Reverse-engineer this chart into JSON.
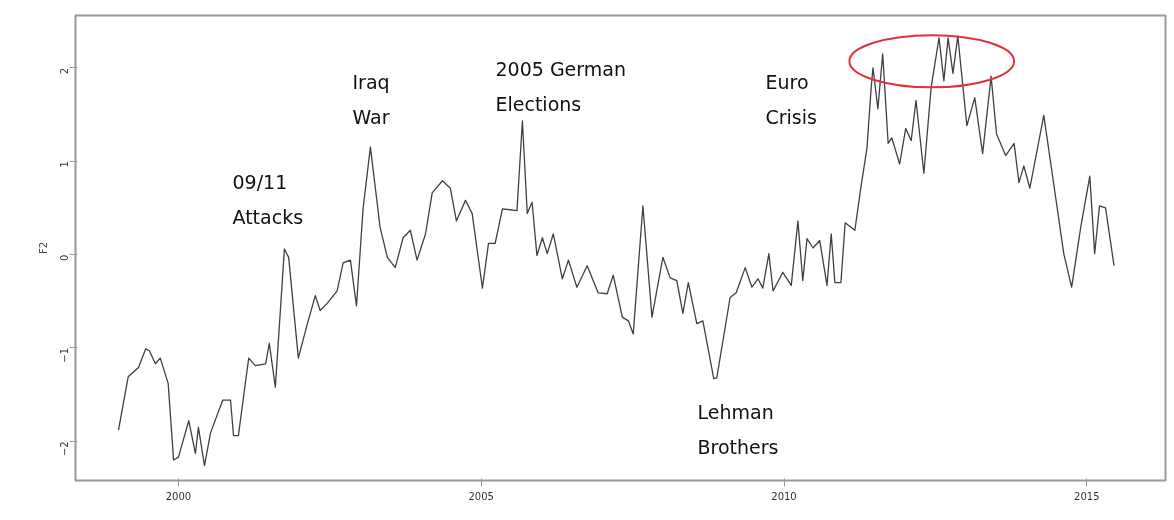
{
  "chart_data": {
    "type": "line",
    "ylabel": "F2",
    "x": [
      1999.01,
      1999.17,
      1999.34,
      1999.46,
      1999.52,
      1999.62,
      1999.7,
      1999.83,
      1999.92,
      2000.0,
      2000.17,
      2000.28,
      2000.33,
      2000.43,
      2000.53,
      2000.73,
      2000.86,
      2000.91,
      2000.99,
      2001.16,
      2001.27,
      2001.44,
      2001.5,
      2001.6,
      2001.75,
      2001.82,
      2001.98,
      2002.13,
      2002.26,
      2002.34,
      2002.46,
      2002.62,
      2002.72,
      2002.84,
      2002.94,
      2003.05,
      2003.17,
      2003.33,
      2003.45,
      2003.58,
      2003.71,
      2003.83,
      2003.94,
      2004.08,
      2004.19,
      2004.36,
      2004.49,
      2004.59,
      2004.74,
      2004.85,
      2005.02,
      2005.12,
      2005.23,
      2005.35,
      2005.59,
      2005.68,
      2005.76,
      2005.84,
      2005.92,
      2006.01,
      2006.09,
      2006.19,
      2006.34,
      2006.44,
      2006.58,
      2006.75,
      2006.93,
      2007.08,
      2007.18,
      2007.33,
      2007.43,
      2007.51,
      2007.67,
      2007.82,
      2008.0,
      2008.12,
      2008.23,
      2008.33,
      2008.42,
      2008.56,
      2008.66,
      2008.84,
      2008.89,
      2009.11,
      2009.21,
      2009.36,
      2009.47,
      2009.57,
      2009.65,
      2009.75,
      2009.82,
      2009.98,
      2010.12,
      2010.23,
      2010.31,
      2010.38,
      2010.48,
      2010.59,
      2010.71,
      2010.78,
      2010.84,
      2010.94,
      2011.01,
      2011.17,
      2011.27,
      2011.37,
      2011.44,
      2011.47,
      2011.55,
      2011.63,
      2011.72,
      2011.78,
      2011.91,
      2012.01,
      2012.1,
      2012.18,
      2012.31,
      2012.43,
      2012.56,
      2012.64,
      2012.71,
      2012.79,
      2012.87,
      2013.02,
      2013.15,
      2013.28,
      2013.42,
      2013.51,
      2013.66,
      2013.8,
      2013.88,
      2013.96,
      2014.06,
      2014.29,
      2014.44,
      2014.62,
      2014.75,
      2014.9,
      2015.05,
      2015.13,
      2015.21,
      2015.31,
      2015.45
    ],
    "series": [
      {
        "color": "#404040",
        "values": [
          -1.88,
          -1.31,
          -1.21,
          -1.01,
          -1.03,
          -1.17,
          -1.11,
          -1.38,
          -2.2,
          -2.17,
          -1.78,
          -2.13,
          -1.85,
          -2.26,
          -1.91,
          -1.56,
          -1.56,
          -1.94,
          -1.94,
          -1.11,
          -1.19,
          -1.17,
          -0.95,
          -1.42,
          0.06,
          -0.03,
          -1.11,
          -0.74,
          -0.44,
          -0.6,
          -0.52,
          -0.39,
          -0.09,
          -0.06,
          -0.55,
          0.5,
          1.15,
          0.29,
          -0.03,
          -0.14,
          0.18,
          0.26,
          -0.06,
          0.22,
          0.66,
          0.79,
          0.71,
          0.36,
          0.58,
          0.44,
          -0.36,
          0.12,
          0.12,
          0.49,
          0.47,
          1.43,
          0.44,
          0.56,
          -0.01,
          0.18,
          0.01,
          0.22,
          -0.26,
          -0.06,
          -0.35,
          -0.12,
          -0.41,
          -0.42,
          -0.22,
          -0.67,
          -0.71,
          -0.85,
          0.52,
          -0.67,
          -0.03,
          -0.25,
          -0.28,
          -0.63,
          -0.3,
          -0.74,
          -0.71,
          -1.33,
          -1.32,
          -0.46,
          -0.41,
          -0.14,
          -0.35,
          -0.26,
          -0.36,
          0.01,
          -0.39,
          -0.19,
          -0.33,
          0.36,
          -0.28,
          0.17,
          0.07,
          0.15,
          -0.33,
          0.22,
          -0.3,
          -0.3,
          0.34,
          0.26,
          0.72,
          1.14,
          1.79,
          2.0,
          1.56,
          2.15,
          1.19,
          1.25,
          0.97,
          1.35,
          1.22,
          1.65,
          0.87,
          1.79,
          2.32,
          1.86,
          2.32,
          1.94,
          2.34,
          1.38,
          1.68,
          1.08,
          1.91,
          1.29,
          1.06,
          1.19,
          0.77,
          0.95,
          0.71,
          1.49,
          0.82,
          0.01,
          -0.35,
          0.29,
          0.84,
          0.01,
          0.52,
          0.5,
          -0.12
        ]
      }
    ],
    "xlim": [
      1998.3,
      2016.3
    ],
    "ylim": [
      -2.42,
      2.56
    ],
    "xticks": [
      2000,
      2005,
      2010,
      2015
    ],
    "yticks": [
      -2,
      -1,
      0,
      1,
      2
    ],
    "grid": false,
    "line_style": "solid",
    "marker": "none",
    "annotations": [
      "09/11\nAttacks",
      "Iraq\nWar",
      "2005 German\nElections",
      "Euro\nCrisis",
      "Lehman\nBrothers"
    ]
  }
}
